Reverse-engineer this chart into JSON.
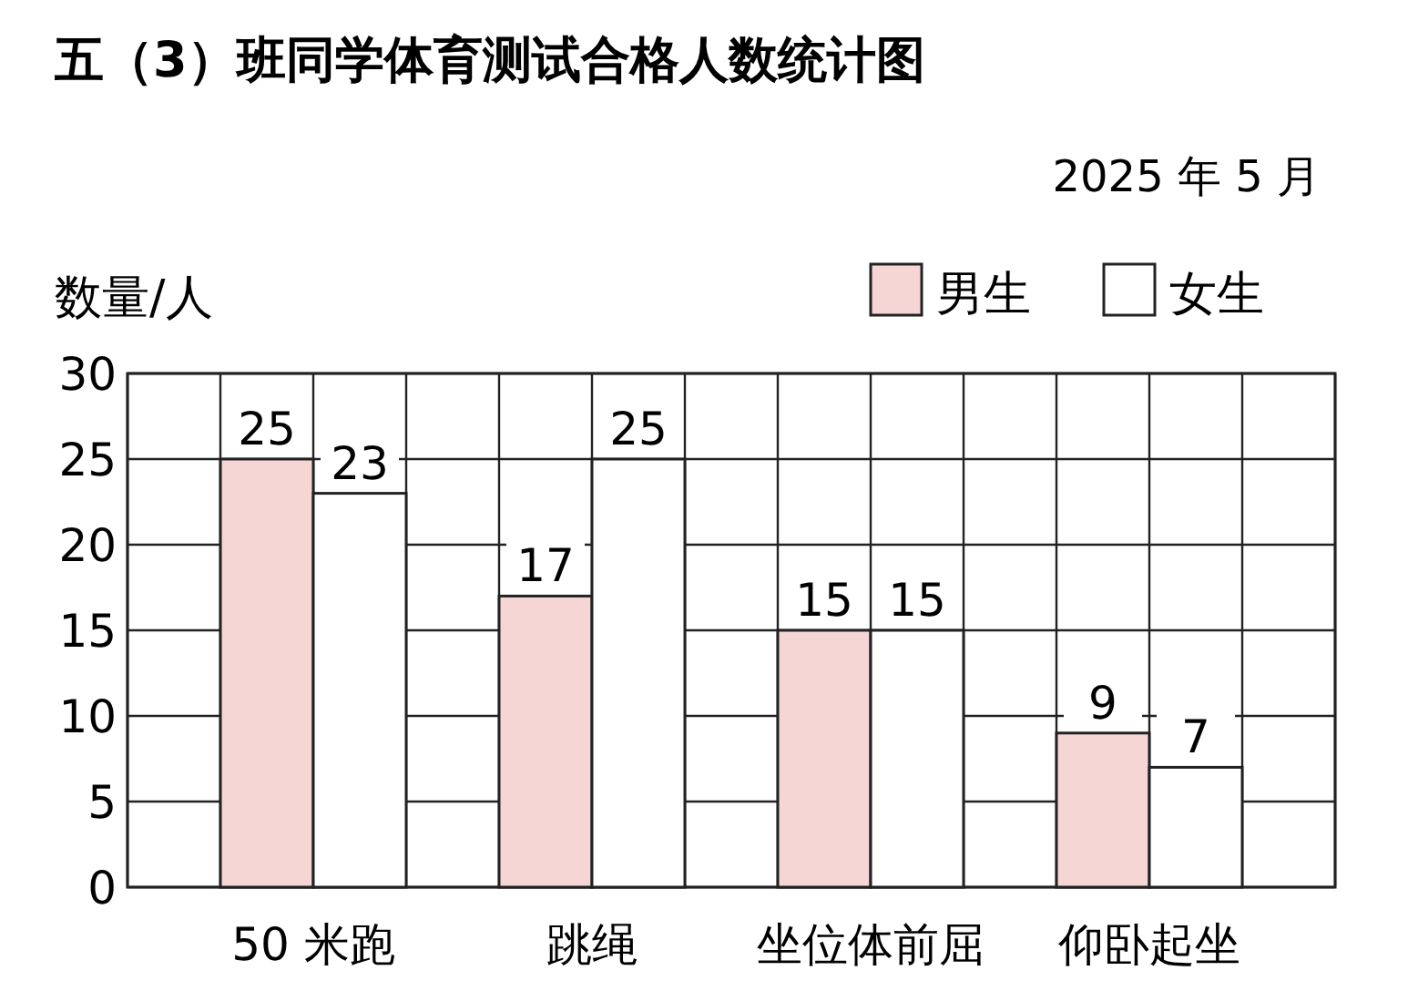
{
  "chart_data": {
    "type": "bar",
    "title": "五（3）班同学体育测试合格人数统计图",
    "subtitle": "2025 年 5 月",
    "ylabel": "数量/人",
    "categories": [
      "50 米跑",
      "跳绳",
      "坐位体前屈",
      "仰卧起坐"
    ],
    "series": [
      {
        "name": "男生",
        "color": "#f6d6d4",
        "values": [
          25,
          17,
          15,
          9
        ]
      },
      {
        "name": "女生",
        "color": "#ffffff",
        "values": [
          23,
          25,
          15,
          7
        ]
      }
    ],
    "ylim": [
      0,
      30
    ],
    "yticks": [
      0,
      5,
      10,
      15,
      20,
      25,
      30
    ],
    "grid": true,
    "legend": "top right",
    "data_labels": true
  }
}
